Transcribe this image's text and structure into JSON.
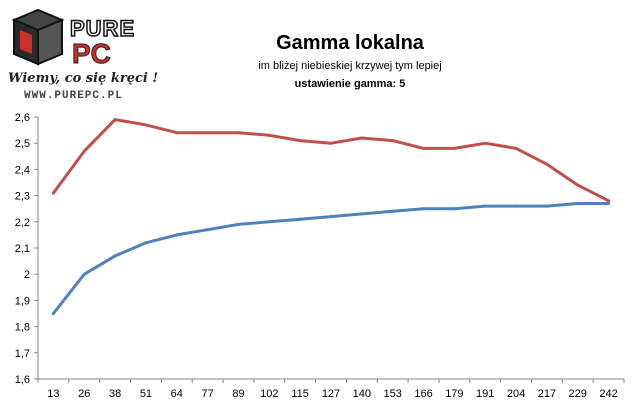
{
  "logo": {
    "brand_top": "PURE",
    "brand_bottom": "PC",
    "slogan": "Wiemy, co się kręci !",
    "url": "WWW.PUREPC.PL"
  },
  "chart_data": {
    "type": "line",
    "title": "Gamma lokalna",
    "subtitle": "im bliżej niebieskiej krzywej tym lepiej",
    "subtitle2": "ustawienie gamma: 5",
    "xlabel": "",
    "ylabel": "",
    "categories": [
      "13",
      "26",
      "38",
      "51",
      "64",
      "77",
      "89",
      "102",
      "115",
      "127",
      "140",
      "153",
      "166",
      "179",
      "191",
      "204",
      "217",
      "229",
      "242"
    ],
    "ylim": [
      1.6,
      2.6
    ],
    "yticks": [
      "1,6",
      "1,7",
      "1,8",
      "1,9",
      "2",
      "2,1",
      "2,2",
      "2,3",
      "2,4",
      "2,5",
      "2,6"
    ],
    "grid": false,
    "series": [
      {
        "color": "#c0504d",
        "values": [
          2.31,
          2.47,
          2.59,
          2.57,
          2.54,
          2.54,
          2.54,
          2.53,
          2.51,
          2.5,
          2.52,
          2.51,
          2.48,
          2.48,
          2.5,
          2.48,
          2.42,
          2.34,
          2.28
        ]
      },
      {
        "color": "#4f81bd",
        "values": [
          1.85,
          2.0,
          2.07,
          2.12,
          2.15,
          2.17,
          2.19,
          2.2,
          2.21,
          2.22,
          2.23,
          2.24,
          2.25,
          2.25,
          2.26,
          2.26,
          2.26,
          2.27,
          2.27
        ]
      }
    ]
  }
}
